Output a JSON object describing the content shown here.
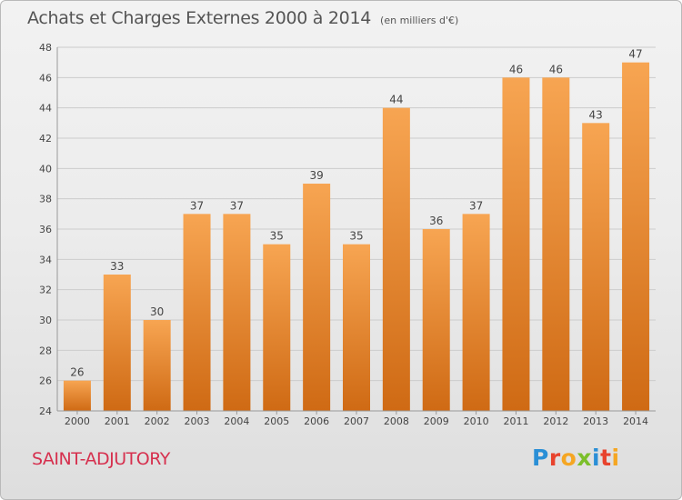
{
  "title": "Achats et Charges Externes 2000 à 2014",
  "unit": "(en milliers d'€)",
  "place": "SAINT-ADJUTORY",
  "brand": {
    "letters": [
      "P",
      "r",
      "o",
      "x",
      "i",
      "t",
      "i"
    ],
    "colors": [
      "#2a8fd6",
      "#e8432d",
      "#f5a623",
      "#7bbf2a",
      "#2a8fd6",
      "#e8432d",
      "#f5a623"
    ]
  },
  "colors": {
    "bar_top": "#f7a552",
    "bar_bottom": "#cf6a14",
    "grid": "#cccccc",
    "axis_text": "#444444",
    "value_text": "#444444"
  },
  "chart_data": {
    "type": "bar",
    "categories": [
      "2000",
      "2001",
      "2002",
      "2003",
      "2004",
      "2005",
      "2006",
      "2007",
      "2008",
      "2009",
      "2010",
      "2011",
      "2012",
      "2013",
      "2014"
    ],
    "values": [
      26,
      33,
      30,
      37,
      37,
      35,
      39,
      35,
      44,
      36,
      37,
      46,
      46,
      43,
      47
    ],
    "title": "Achats et Charges Externes 2000 à 2014",
    "ylim": [
      24,
      48
    ],
    "yticks": [
      24,
      26,
      28,
      30,
      32,
      34,
      36,
      38,
      40,
      42,
      44,
      46,
      48
    ],
    "grid": true,
    "data_labels": true
  }
}
